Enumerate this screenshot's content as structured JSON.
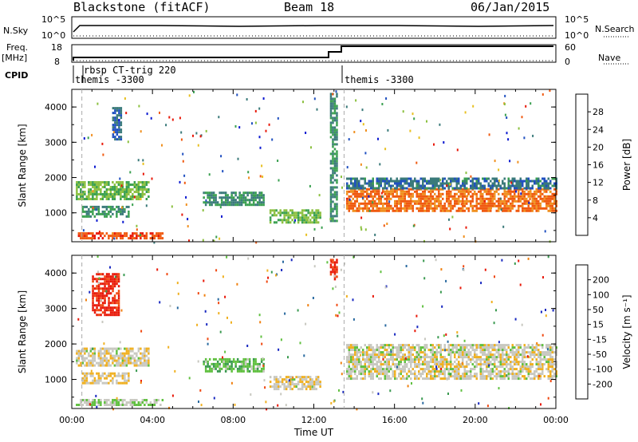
{
  "header": {
    "station": "Blackstone (fitACF)",
    "beam": "Beam 18",
    "date": "06/Jan/2015"
  },
  "params": {
    "nsky_label": "N.Sky",
    "nsky_tick_hi": "10^5",
    "nsky_tick_lo": "10^0",
    "nsearch_label": "N.Search",
    "freq_label_1": "Freq.",
    "freq_label_2": "[MHz]",
    "freq_tick_hi": "18",
    "freq_tick_lo": "8",
    "nave_label": "Nave",
    "nave_tick_hi": "60",
    "nave_tick_lo": "0",
    "cpid_label": "CPID",
    "cpid_entries": [
      "rbsp CT-trig 220",
      "themis -3300",
      "themis -3300"
    ]
  },
  "x_axis": {
    "label": "Time UT",
    "ticks": [
      "00:00",
      "04:00",
      "08:00",
      "12:00",
      "16:00",
      "20:00",
      "00:00"
    ]
  },
  "panels": {
    "power": {
      "ylabel": "Slant Range [km]",
      "yticks": [
        "1000",
        "2000",
        "3000",
        "4000"
      ],
      "colorbar_label": "Power [dB]",
      "colorbar_ticks": [
        "4",
        "8",
        "12",
        "16",
        "20",
        "24",
        "28"
      ]
    },
    "velocity": {
      "ylabel": "Slant Range [km]",
      "yticks": [
        "1000",
        "2000",
        "3000",
        "4000"
      ],
      "colorbar_label": "Velocity [m s⁻¹]",
      "colorbar_ticks": [
        "-200",
        "-100",
        "-50",
        "-15",
        "15",
        "50",
        "100",
        "200"
      ]
    }
  },
  "colors": {
    "power_scale": [
      "#0a18d0",
      "#2050c0",
      "#3a7a7a",
      "#3aa050",
      "#8cc040",
      "#e8c020",
      "#f09020",
      "#f05a10",
      "#e81808"
    ],
    "velocity_scale": [
      "#e81808",
      "#f04810",
      "#f08010",
      "#f0b020",
      "#c8c8c0",
      "#60c040",
      "#3a9a50",
      "#2a6aa0",
      "#1828c0"
    ]
  },
  "chart_data": [
    {
      "type": "heatmap",
      "title": "Power",
      "xlabel": "Time UT",
      "ylabel": "Slant Range [km]",
      "x_range_hours": [
        0,
        24
      ],
      "ylim": [
        180,
        4500
      ],
      "colorbar": {
        "label": "Power [dB]",
        "range": [
          0,
          30
        ]
      },
      "echo_regions": [
        {
          "t0": 0.2,
          "t1": 3.8,
          "range0": 1400,
          "range1": 1900,
          "power": 14
        },
        {
          "t0": 0.2,
          "t1": 4.5,
          "range0": 300,
          "range1": 450,
          "power": 26
        },
        {
          "t0": 0.5,
          "t1": 2.8,
          "range0": 900,
          "range1": 1200,
          "power": 10
        },
        {
          "t0": 2.0,
          "t1": 2.4,
          "range0": 3100,
          "range1": 4000,
          "power": 6
        },
        {
          "t0": 6.5,
          "t1": 9.5,
          "range0": 1200,
          "range1": 1600,
          "power": 10
        },
        {
          "t0": 9.8,
          "t1": 12.3,
          "range0": 700,
          "range1": 1100,
          "power": 14
        },
        {
          "t0": 12.8,
          "t1": 13.1,
          "range0": 800,
          "range1": 4400,
          "power": 10
        },
        {
          "t0": 13.6,
          "t1": 24.0,
          "range0": 1050,
          "range1": 1700,
          "power": 24
        },
        {
          "t0": 13.6,
          "t1": 24.0,
          "range0": 1700,
          "range1": 2000,
          "power": 8
        }
      ]
    },
    {
      "type": "heatmap",
      "title": "Velocity",
      "xlabel": "Time UT",
      "ylabel": "Slant Range [km]",
      "x_range_hours": [
        0,
        24
      ],
      "ylim": [
        180,
        4500
      ],
      "colorbar": {
        "label": "Velocity [m s⁻¹]",
        "range": [
          -250,
          250
        ]
      },
      "echo_regions": [
        {
          "t0": 0.2,
          "t1": 3.8,
          "range0": 1400,
          "range1": 1900,
          "velocity": -10
        },
        {
          "t0": 0.2,
          "t1": 4.5,
          "range0": 300,
          "range1": 450,
          "velocity": 20
        },
        {
          "t0": 0.5,
          "t1": 2.8,
          "range0": 900,
          "range1": 1200,
          "velocity": -20
        },
        {
          "t0": 1.0,
          "t1": 2.3,
          "range0": 2800,
          "range1": 4000,
          "velocity": -220
        },
        {
          "t0": 6.5,
          "t1": 9.5,
          "range0": 1200,
          "range1": 1600,
          "velocity": 60
        },
        {
          "t0": 9.8,
          "t1": 12.3,
          "range0": 700,
          "range1": 1100,
          "velocity": -10
        },
        {
          "t0": 12.8,
          "t1": 13.1,
          "range0": 3800,
          "range1": 4400,
          "velocity": -200
        },
        {
          "t0": 13.6,
          "t1": 24.0,
          "range0": 1050,
          "range1": 2000,
          "velocity": -5
        }
      ]
    }
  ]
}
